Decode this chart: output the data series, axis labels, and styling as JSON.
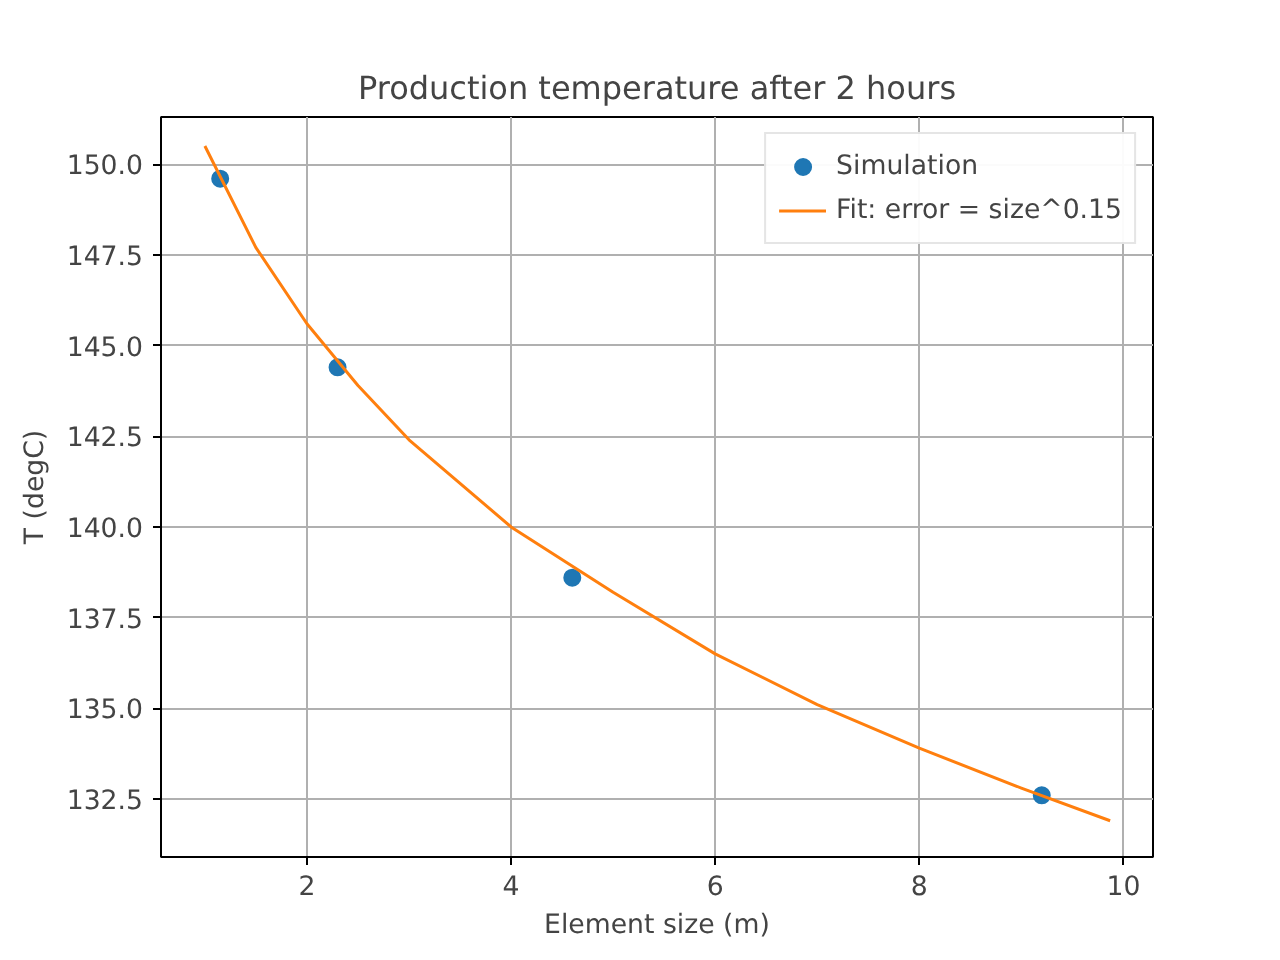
{
  "chart_data": {
    "type": "scatter",
    "title": "Production temperature after 2 hours",
    "xlabel": "Element size (m)",
    "ylabel": "T (degC)",
    "series": [
      {
        "name": "Simulation",
        "color": "#1f77b4",
        "marker": "circle",
        "x": [
          1.15,
          2.3,
          4.6,
          9.2
        ],
        "values": [
          149.6,
          144.4,
          138.6,
          132.6
        ]
      },
      {
        "name": "Fit: error = size^0.15",
        "type": "line",
        "color": "#ff7f0e",
        "marker": "none",
        "line_style": "solid",
        "x": [
          1,
          1.5,
          2,
          2.5,
          3,
          4,
          5,
          6,
          7,
          8,
          9,
          9.87
        ],
        "values": [
          150.5,
          147.7,
          145.6,
          143.9,
          142.4,
          140.0,
          138.2,
          136.5,
          135.1,
          133.9,
          132.8,
          131.9
        ]
      }
    ],
    "xlim": [
      0.57,
      10.29
    ],
    "ylim": [
      130.9,
      151.3
    ],
    "xticks": [
      2,
      4,
      6,
      8,
      10
    ],
    "yticks": [
      132.5,
      {
        "value": 135,
        "label": "135.0"
      },
      137.5,
      {
        "value": 140,
        "label": "140.0"
      },
      142.5,
      {
        "value": 145,
        "label": "145.0"
      },
      147.5,
      {
        "value": 150,
        "label": "150.0"
      }
    ],
    "grid": true,
    "legend": "top right"
  }
}
